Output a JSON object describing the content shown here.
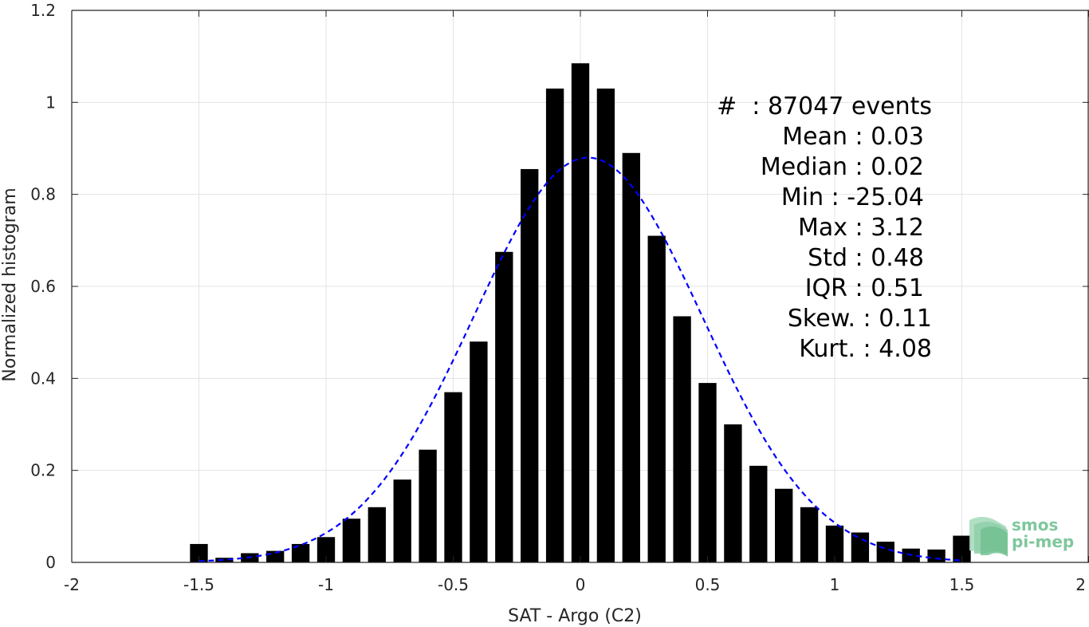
{
  "chart_data": {
    "type": "bar",
    "xlabel": "SAT - Argo (C2)",
    "ylabel": "Normalized histogram",
    "xlim": [
      -2,
      2
    ],
    "ylim": [
      0,
      1.2
    ],
    "xticks": [
      -2,
      -1.5,
      -1,
      -0.5,
      0,
      0.5,
      1,
      1.5,
      2
    ],
    "xtick_labels": [
      "-2",
      "-1.5",
      "-1",
      "-0.5",
      "0",
      "0.5",
      "1",
      "1.5",
      "2"
    ],
    "yticks": [
      0,
      0.2,
      0.4,
      0.6,
      0.8,
      1,
      1.2
    ],
    "ytick_labels": [
      "0",
      "0.2",
      "0.4",
      "0.6",
      "0.8",
      "1",
      "1.2"
    ],
    "grid": true,
    "bar_color": "#000000",
    "bars": {
      "x": [
        -1.5,
        -1.4,
        -1.3,
        -1.2,
        -1.1,
        -1.0,
        -0.9,
        -0.8,
        -0.7,
        -0.6,
        -0.5,
        -0.4,
        -0.3,
        -0.2,
        -0.1,
        0.0,
        0.1,
        0.2,
        0.3,
        0.4,
        0.5,
        0.6,
        0.7,
        0.8,
        0.9,
        1.0,
        1.1,
        1.2,
        1.3,
        1.4,
        1.5
      ],
      "values": [
        0.04,
        0.01,
        0.02,
        0.025,
        0.04,
        0.055,
        0.095,
        0.12,
        0.18,
        0.245,
        0.37,
        0.48,
        0.675,
        0.855,
        1.03,
        1.085,
        1.03,
        0.89,
        0.71,
        0.535,
        0.39,
        0.3,
        0.21,
        0.16,
        0.12,
        0.08,
        0.065,
        0.045,
        0.03,
        0.028,
        0.058
      ]
    },
    "fit_curve": {
      "style": "dashed",
      "color": "#0000ff",
      "mean": 0.03,
      "std": 0.45,
      "peak": 0.88,
      "x_range": [
        -1.5,
        1.5
      ]
    },
    "stats_lines": [
      "#  : 87047 events",
      "Mean : 0.03",
      "Median : 0.02",
      "Min : -25.04",
      "Max : 3.12",
      "Std : 0.48",
      "IQR : 0.51",
      "Skew. : 0.11",
      "Kurt. : 4.08"
    ]
  },
  "logo": {
    "line1": "smos",
    "line2": "pi-mep",
    "color": "#7fc79c"
  }
}
